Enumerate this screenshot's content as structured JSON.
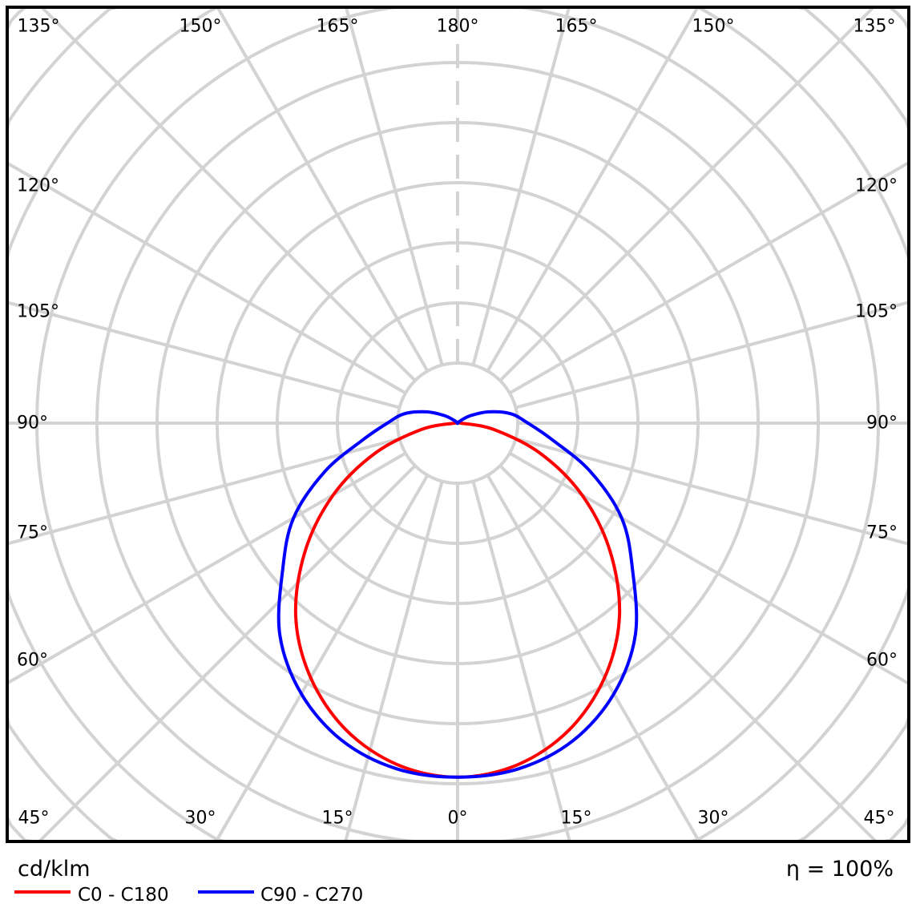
{
  "chart_data": {
    "type": "polar",
    "title": "",
    "unit_label": "cd/klm",
    "efficiency_label": "η = 100%",
    "ring_labels_shown": false,
    "angle_step_deg": 15,
    "angle_labels": {
      "top": [
        "135°",
        "150°",
        "165°",
        "180°",
        "165°",
        "150°",
        "135°"
      ],
      "left": [
        "120°",
        "105°",
        "90°",
        "75°",
        "60°"
      ],
      "right": [
        "120°",
        "105°",
        "90°",
        "75°",
        "60°"
      ],
      "bottom": [
        "45°",
        "30°",
        "15°",
        "0°",
        "15°",
        "30°",
        "45°"
      ]
    },
    "grid": true,
    "grid_color": "#d3d3d3",
    "radial_units": "grid rings (unlabeled)",
    "angles_deg": [
      0,
      10,
      20,
      30,
      40,
      50,
      60,
      70,
      80,
      90,
      100,
      110,
      120,
      130,
      140,
      150,
      160,
      170,
      180
    ],
    "series": [
      {
        "name": "C0 - C180",
        "color": "#ff0000",
        "values": [
          5.89,
          5.77,
          5.43,
          4.89,
          4.19,
          3.31,
          2.39,
          1.46,
          0.61,
          0.05,
          0,
          0,
          0,
          0,
          0,
          0,
          0,
          0,
          0
        ]
      },
      {
        "name": "C90 - C270",
        "color": "#0000ff",
        "values": [
          5.89,
          5.84,
          5.62,
          5.2,
          4.6,
          3.8,
          3.15,
          2.35,
          1.6,
          1.17,
          0.9,
          0.55,
          0.25,
          0.06,
          0,
          0,
          0,
          0,
          0
        ]
      }
    ],
    "legend": "bottom-left"
  }
}
